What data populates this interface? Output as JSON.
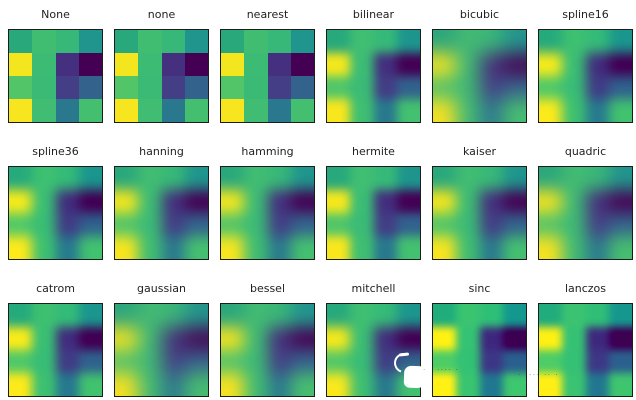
{
  "figure": {
    "background": "#ffffff",
    "subplot_border": "#1c1c1c",
    "title_color": "#1f1f1f"
  },
  "chart_data": {
    "type": "heatmap",
    "layout": {
      "rows": 3,
      "cols": 6,
      "colormap": "viridis",
      "grid": "off",
      "axes_ticks": "off"
    },
    "pixel_grid": [
      [
        "#29a87c",
        "#41bd72",
        "#37b878",
        "#1f958d"
      ],
      [
        "#f4e61e",
        "#3cbb75",
        "#44307e",
        "#440154"
      ],
      [
        "#52c569",
        "#3bba76",
        "#433e85",
        "#33638d"
      ],
      [
        "#f7e51f",
        "#40bd72",
        "#2a788e",
        "#44bf70"
      ]
    ],
    "subplots": [
      {
        "label": "None",
        "blur": 0,
        "contrast": 1
      },
      {
        "label": "none",
        "blur": 0,
        "contrast": 1
      },
      {
        "label": "nearest",
        "blur": 0,
        "contrast": 1
      },
      {
        "label": "bilinear",
        "blur": 5,
        "contrast": 1.02
      },
      {
        "label": "bicubic",
        "blur": 9,
        "contrast": 0.95
      },
      {
        "label": "spline16",
        "blur": 6,
        "contrast": 1.05
      },
      {
        "label": "spline36",
        "blur": 6,
        "contrast": 1.05
      },
      {
        "label": "hanning",
        "blur": 7,
        "contrast": 1
      },
      {
        "label": "hamming",
        "blur": 7,
        "contrast": 1
      },
      {
        "label": "hermite",
        "blur": 5,
        "contrast": 1.02
      },
      {
        "label": "kaiser",
        "blur": 7,
        "contrast": 1
      },
      {
        "label": "quadric",
        "blur": 8,
        "contrast": 0.97
      },
      {
        "label": "catrom",
        "blur": 5,
        "contrast": 1.05
      },
      {
        "label": "gaussian",
        "blur": 9,
        "contrast": 0.95
      },
      {
        "label": "bessel",
        "blur": 8,
        "contrast": 0.97
      },
      {
        "label": "mitchell",
        "blur": 6,
        "contrast": 1.03
      },
      {
        "label": "sinc",
        "blur": 4,
        "contrast": 1.12
      },
      {
        "label": "lanczos",
        "blur": 4,
        "contrast": 1.1
      }
    ]
  },
  "overlay": {
    "cursor_color": "#ffffff",
    "watermark_dot_left": "·",
    "watermark_dots_sinc": "···· ·",
    "watermark_dots_lanczos": "· ···· ·· ·"
  }
}
